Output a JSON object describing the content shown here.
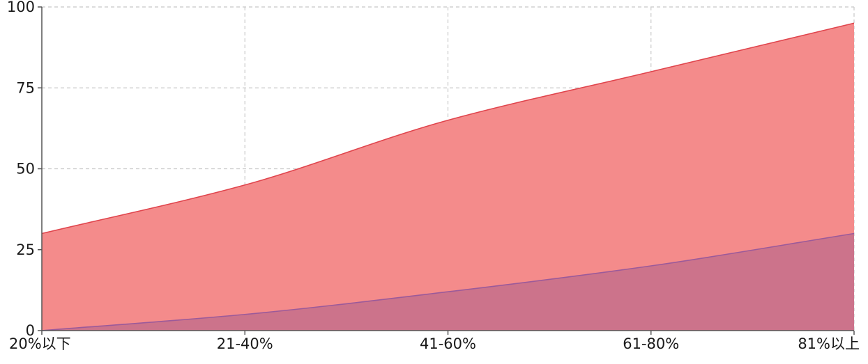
{
  "chart_data": {
    "type": "area",
    "categories": [
      "20%以下",
      "21-40%",
      "41-60%",
      "61-80%",
      "81%以上"
    ],
    "series": [
      {
        "values": [
          30,
          45,
          65,
          80,
          95
        ],
        "color": "#f48b8b",
        "stroke": "#e0454d"
      },
      {
        "values": [
          0,
          5,
          12,
          20,
          30
        ],
        "color": "#c46e8b",
        "stroke": "#9b5a9a"
      }
    ],
    "y_ticks": [
      "0",
      "25",
      "50",
      "75",
      "100"
    ],
    "ylim": [
      0,
      100
    ],
    "grid": true,
    "legend": "none"
  }
}
